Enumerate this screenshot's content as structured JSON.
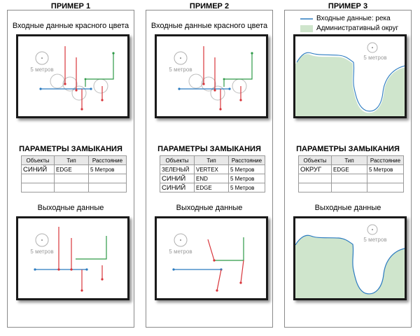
{
  "examples": [
    {
      "title": "ПРИМЕР 1",
      "input_label": "Входные данные красного цвета",
      "tolerance_label": "5 метров",
      "params_title": "ПАРАМЕТРЫ ЗАМЫКАНИЯ",
      "headers": [
        "Объекты",
        "Тип",
        "Расстояние"
      ],
      "rows": [
        [
          "СИНИЙ",
          "EDGE",
          "5 Метров"
        ],
        [
          "",
          "",
          ""
        ],
        [
          "",
          "",
          ""
        ]
      ],
      "output_label": "Выходные данные",
      "output_tolerance_label": "5 метров"
    },
    {
      "title": "ПРИМЕР 2",
      "input_label": "Входные данные красного цвета",
      "tolerance_label": "5 метров",
      "params_title": "ПАРАМЕТРЫ ЗАМЫКАНИЯ",
      "headers": [
        "Объекты",
        "Тип",
        "Расстояние"
      ],
      "rows": [
        [
          "ЗЕЛЕНЫЙ",
          "VERTEX",
          "5 Метров"
        ],
        [
          "СИНИЙ",
          "END",
          "5 Метров"
        ],
        [
          "СИНИЙ",
          "EDGE",
          "5 Метров"
        ]
      ],
      "output_label": "Выходные данные",
      "output_tolerance_label": "5 метров"
    },
    {
      "title": "ПРИМЕР 3",
      "legend": [
        "Входные данные: река",
        "Административный округ"
      ],
      "tolerance_label": "5 метров",
      "params_title": "ПАРАМЕТРЫ ЗАМЫКАНИЯ",
      "headers": [
        "Объекты",
        "Тип",
        "Расстояние"
      ],
      "rows": [
        [
          "ОКРУГ",
          "EDGE",
          "5 Метров"
        ],
        [
          "",
          "",
          ""
        ],
        [
          "",
          "",
          ""
        ]
      ],
      "output_label": "Выходные данные",
      "output_tolerance_label": "5 метров"
    }
  ],
  "colors": {
    "red": "#d8343a",
    "blue": "#2b7bc0",
    "green": "#2e9a48",
    "district_fill": "#cfe5cc",
    "gray": "#b0b0b0"
  },
  "icons": [
    "tolerance-circle-icon",
    "legend-river-line-icon",
    "legend-district-patch-icon"
  ]
}
